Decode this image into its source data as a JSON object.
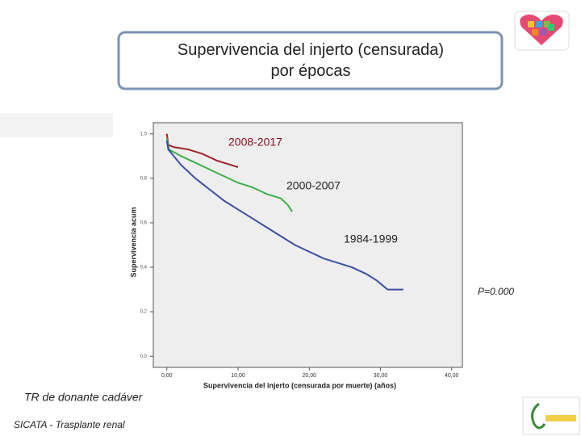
{
  "chart_data": {
    "type": "line",
    "title": "Supervivencia del injerto (censurada) por épocas",
    "xlabel": "Supervivencia del injerto (censurada por muerte) (años)",
    "ylabel": "Supervivencia acum",
    "xlim": [
      -1.9,
      41.5
    ],
    "ylim": [
      -0.05,
      1.05
    ],
    "xticks": [
      {
        "value": 0,
        "label": "0,00"
      },
      {
        "value": 10,
        "label": "10,00"
      },
      {
        "value": 20,
        "label": "20,00"
      },
      {
        "value": 30,
        "label": "30,00"
      },
      {
        "value": 40,
        "label": "40,00"
      }
    ],
    "yticks": [
      {
        "value": 0,
        "label": "0,0"
      },
      {
        "value": 0.2,
        "label": "0,2"
      },
      {
        "value": 0.4,
        "label": "0,4"
      },
      {
        "value": 0.6,
        "label": "0,6"
      },
      {
        "value": 0.8,
        "label": "0,8"
      },
      {
        "value": 1,
        "label": "1,0"
      }
    ],
    "series": [
      {
        "name": "2008-2017",
        "color": "#a0222a",
        "x": [
          0,
          0.2,
          1,
          3,
          5,
          7,
          9,
          10
        ],
        "values": [
          1.0,
          0.95,
          0.94,
          0.93,
          0.91,
          0.88,
          0.86,
          0.85
        ]
      },
      {
        "name": "2000-2007",
        "color": "#3fae49",
        "x": [
          0,
          0.3,
          2,
          4,
          6,
          8,
          10,
          12,
          14,
          16,
          17,
          17.6
        ],
        "values": [
          0.98,
          0.93,
          0.9,
          0.87,
          0.84,
          0.81,
          0.78,
          0.76,
          0.73,
          0.71,
          0.68,
          0.65
        ]
      },
      {
        "name": "1984-1999",
        "color": "#3a4fa3",
        "x": [
          0,
          0.2,
          2,
          4,
          6,
          8,
          10,
          12,
          15,
          18,
          20,
          22,
          24,
          26,
          28,
          29.5,
          31,
          33.2
        ],
        "values": [
          0.97,
          0.93,
          0.86,
          0.8,
          0.75,
          0.7,
          0.66,
          0.62,
          0.56,
          0.5,
          0.47,
          0.44,
          0.42,
          0.4,
          0.37,
          0.34,
          0.3,
          0.3
        ]
      }
    ],
    "annotations": [
      "P=0.000",
      "TR de donante cadáver",
      "SICATA - Trasplante renal"
    ]
  }
}
